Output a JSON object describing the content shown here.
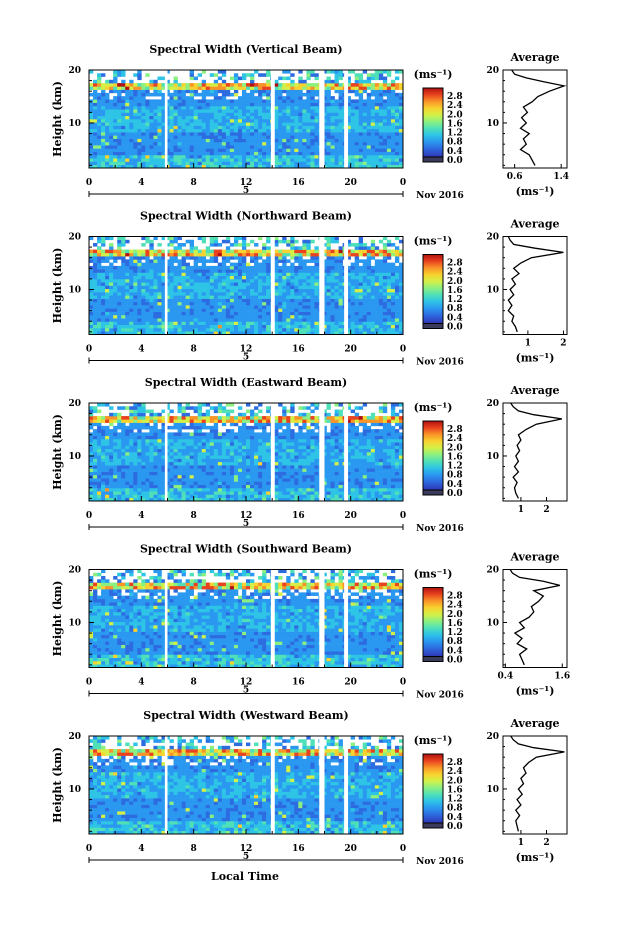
{
  "figure": {
    "xlabel": "Local Time",
    "date_label": "Nov 2016",
    "day_label": "5",
    "average_title": "Average",
    "colorbar_unit": "(ms⁻¹)",
    "colormap": [
      "#2a1b6e",
      "#2f3fbf",
      "#2d6be0",
      "#2a98f0",
      "#2ec4e6",
      "#4fe0b8",
      "#8cf080",
      "#d4f048",
      "#f8d22e",
      "#f89428",
      "#e8421e",
      "#b01010"
    ],
    "gap_color": "#ffffff"
  },
  "chart_data": [
    {
      "type": "heatmap",
      "title": "Spectral Width (Vertical Beam)",
      "ylabel": "Height (km)",
      "x_ticks": [
        "0",
        "4",
        "8",
        "12",
        "16",
        "20",
        "0"
      ],
      "xlim": [
        0,
        24
      ],
      "y_ticks": [
        "20",
        "10"
      ],
      "ylim": [
        1.5,
        20
      ],
      "data_gaps_hours": [
        [
          5.8,
          6.0
        ],
        [
          13.9,
          14.2
        ],
        [
          17.6,
          18.0
        ],
        [
          19.5,
          19.8
        ]
      ],
      "colorbar": {
        "ticks": [
          "2.8",
          "2.4",
          "2.0",
          "1.6",
          "1.2",
          "0.8",
          "0.4",
          "0.0"
        ],
        "range": [
          0.0,
          2.8
        ]
      },
      "average": {
        "x_ticks": [
          "0.6",
          "1.4"
        ],
        "xlim": [
          0.4,
          1.5
        ],
        "y_ticks": [
          "20",
          "10"
        ],
        "xlabel": "(ms⁻¹)",
        "profile": [
          [
            0.95,
            2
          ],
          [
            0.9,
            3
          ],
          [
            0.85,
            4
          ],
          [
            0.7,
            5
          ],
          [
            0.8,
            6
          ],
          [
            0.75,
            7
          ],
          [
            0.85,
            8
          ],
          [
            0.7,
            9
          ],
          [
            0.8,
            10
          ],
          [
            0.72,
            11
          ],
          [
            0.82,
            12
          ],
          [
            0.75,
            13
          ],
          [
            0.9,
            14
          ],
          [
            1.0,
            15
          ],
          [
            1.2,
            16
          ],
          [
            1.45,
            17
          ],
          [
            1.1,
            17.8
          ],
          [
            0.8,
            18.5
          ],
          [
            0.6,
            19.2
          ],
          [
            0.55,
            20
          ]
        ]
      }
    },
    {
      "type": "heatmap",
      "title": "Spectral Width (Northward Beam)",
      "ylabel": "Height (km)",
      "x_ticks": [
        "0",
        "4",
        "8",
        "12",
        "16",
        "20",
        "0"
      ],
      "xlim": [
        0,
        24
      ],
      "y_ticks": [
        "20",
        "10"
      ],
      "ylim": [
        1.5,
        20
      ],
      "data_gaps_hours": [
        [
          5.8,
          6.0
        ],
        [
          13.9,
          14.2
        ],
        [
          17.6,
          18.0
        ],
        [
          19.5,
          19.8
        ]
      ],
      "colorbar": {
        "ticks": [
          "2.8",
          "2.4",
          "2.0",
          "1.6",
          "1.2",
          "0.8",
          "0.4",
          "0.0"
        ],
        "range": [
          0.0,
          2.8
        ]
      },
      "average": {
        "x_ticks": [
          "1",
          "2"
        ],
        "xlim": [
          0.3,
          2.1
        ],
        "y_ticks": [
          "20",
          "10"
        ],
        "xlabel": "(ms⁻¹)",
        "profile": [
          [
            0.7,
            2
          ],
          [
            0.65,
            3
          ],
          [
            0.55,
            4
          ],
          [
            0.6,
            5
          ],
          [
            0.45,
            6
          ],
          [
            0.55,
            7
          ],
          [
            0.45,
            8
          ],
          [
            0.6,
            9
          ],
          [
            0.5,
            10
          ],
          [
            0.65,
            11
          ],
          [
            0.55,
            12
          ],
          [
            0.75,
            13
          ],
          [
            0.6,
            14
          ],
          [
            0.8,
            15
          ],
          [
            1.1,
            16
          ],
          [
            2.0,
            17
          ],
          [
            1.2,
            17.8
          ],
          [
            0.6,
            18.5
          ],
          [
            0.5,
            19.3
          ],
          [
            0.45,
            20
          ]
        ]
      }
    },
    {
      "type": "heatmap",
      "title": "Spectral Width (Eastward Beam)",
      "ylabel": "Height (km)",
      "x_ticks": [
        "0",
        "4",
        "8",
        "12",
        "16",
        "20",
        "0"
      ],
      "xlim": [
        0,
        24
      ],
      "y_ticks": [
        "20",
        "10"
      ],
      "ylim": [
        1.5,
        20
      ],
      "data_gaps_hours": [
        [
          5.8,
          6.0
        ],
        [
          13.9,
          14.2
        ],
        [
          17.6,
          18.0
        ],
        [
          19.5,
          19.8
        ]
      ],
      "colorbar": {
        "ticks": [
          "2.8",
          "2.4",
          "2.0",
          "1.6",
          "1.2",
          "0.8",
          "0.4",
          "0.0"
        ],
        "range": [
          0.0,
          2.8
        ]
      },
      "average": {
        "x_ticks": [
          "1",
          "2"
        ],
        "xlim": [
          0.3,
          2.8
        ],
        "y_ticks": [
          "20",
          "10"
        ],
        "xlabel": "",
        "profile": [
          [
            0.9,
            2
          ],
          [
            0.8,
            3
          ],
          [
            0.75,
            4
          ],
          [
            0.85,
            5
          ],
          [
            0.7,
            6
          ],
          [
            0.9,
            7
          ],
          [
            0.75,
            8
          ],
          [
            0.9,
            9
          ],
          [
            0.8,
            10
          ],
          [
            0.95,
            11
          ],
          [
            0.85,
            12
          ],
          [
            1.0,
            13
          ],
          [
            0.9,
            14
          ],
          [
            1.2,
            15
          ],
          [
            1.6,
            16
          ],
          [
            2.6,
            17
          ],
          [
            1.5,
            17.8
          ],
          [
            0.9,
            18.5
          ],
          [
            0.7,
            19.3
          ],
          [
            0.6,
            20
          ]
        ]
      }
    },
    {
      "type": "heatmap",
      "title": "Spectral Width (Southward Beam)",
      "ylabel": "Height (km)",
      "x_ticks": [
        "0",
        "4",
        "8",
        "12",
        "16",
        "20",
        "0"
      ],
      "xlim": [
        0,
        24
      ],
      "y_ticks": [
        "20",
        "10"
      ],
      "ylim": [
        1.5,
        20
      ],
      "data_gaps_hours": [
        [
          5.8,
          6.0
        ],
        [
          13.9,
          14.2
        ],
        [
          17.6,
          18.0
        ],
        [
          19.5,
          19.8
        ]
      ],
      "colorbar": {
        "ticks": [
          "2.8",
          "2.4",
          "2.0",
          "1.6",
          "1.2",
          "0.8",
          "0.4",
          "0.0"
        ],
        "range": [
          0.0,
          2.8
        ]
      },
      "average": {
        "x_ticks": [
          "0.4",
          "1.6"
        ],
        "xlim": [
          0.35,
          1.7
        ],
        "y_ticks": [
          "20",
          "10"
        ],
        "xlabel": "(ms⁻¹)",
        "profile": [
          [
            0.8,
            2
          ],
          [
            0.75,
            3
          ],
          [
            0.7,
            4
          ],
          [
            0.85,
            5
          ],
          [
            0.65,
            6
          ],
          [
            0.75,
            7
          ],
          [
            0.6,
            8
          ],
          [
            0.8,
            9
          ],
          [
            0.7,
            10
          ],
          [
            0.9,
            11
          ],
          [
            1.0,
            12
          ],
          [
            0.95,
            13
          ],
          [
            1.1,
            14
          ],
          [
            1.2,
            15
          ],
          [
            1.0,
            16
          ],
          [
            1.55,
            17
          ],
          [
            1.2,
            17.8
          ],
          [
            0.7,
            18.5
          ],
          [
            0.55,
            19.3
          ],
          [
            0.5,
            20
          ]
        ]
      }
    },
    {
      "type": "heatmap",
      "title": "Spectral Width (Westward Beam)",
      "ylabel": "Height (km)",
      "x_ticks": [
        "0",
        "4",
        "8",
        "12",
        "16",
        "20",
        "0"
      ],
      "xlim": [
        0,
        24
      ],
      "y_ticks": [
        "20",
        "10"
      ],
      "ylim": [
        1.5,
        20
      ],
      "data_gaps_hours": [
        [
          5.8,
          6.0
        ],
        [
          13.9,
          14.2
        ],
        [
          17.6,
          18.0
        ],
        [
          19.5,
          19.8
        ]
      ],
      "colorbar": {
        "ticks": [
          "2.8",
          "2.4",
          "2.0",
          "1.6",
          "1.2",
          "0.8",
          "0.4",
          "0.0"
        ],
        "range": [
          0.0,
          2.8
        ]
      },
      "average": {
        "x_ticks": [
          "1",
          "2"
        ],
        "xlim": [
          0.3,
          2.8
        ],
        "y_ticks": [
          "20",
          "10"
        ],
        "xlabel": "(ms⁻¹)",
        "profile": [
          [
            0.9,
            2
          ],
          [
            0.85,
            3
          ],
          [
            0.8,
            4
          ],
          [
            0.95,
            5
          ],
          [
            0.8,
            6
          ],
          [
            1.0,
            7
          ],
          [
            0.85,
            8
          ],
          [
            1.05,
            9
          ],
          [
            0.9,
            10
          ],
          [
            1.1,
            11
          ],
          [
            1.0,
            12
          ],
          [
            1.2,
            13
          ],
          [
            1.1,
            14
          ],
          [
            1.3,
            15
          ],
          [
            1.6,
            16
          ],
          [
            2.7,
            17
          ],
          [
            1.5,
            17.8
          ],
          [
            0.9,
            18.5
          ],
          [
            0.7,
            19.3
          ],
          [
            0.6,
            20
          ]
        ]
      }
    }
  ]
}
